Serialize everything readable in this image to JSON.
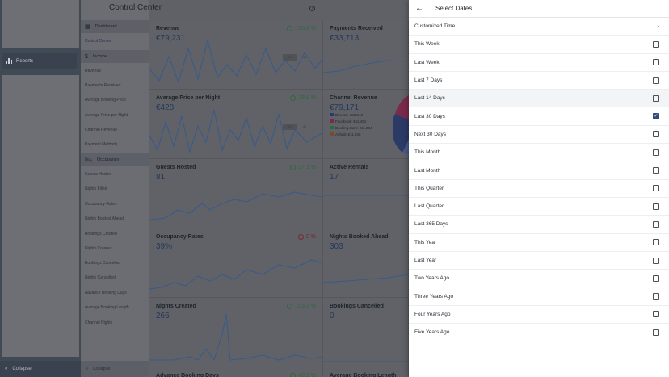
{
  "app_nav": {
    "reports_label": "Reports",
    "collapse_label": "Collapse"
  },
  "sub_nav": {
    "items": [
      {
        "label": "Dashboard",
        "type": "section",
        "icon": "dashboard-icon"
      },
      {
        "label": "Control Center",
        "type": "active"
      },
      {
        "label": "Income",
        "type": "section",
        "icon": "dollar-icon"
      },
      {
        "label": "Revenue"
      },
      {
        "label": "Payments Received"
      },
      {
        "label": "Average Booking Price"
      },
      {
        "label": "Average Price per Night"
      },
      {
        "label": "Channel Revenue"
      },
      {
        "label": "Payment Methods"
      },
      {
        "label": "Occupancy",
        "type": "section",
        "icon": "bed-icon"
      },
      {
        "label": "Guests Hosted"
      },
      {
        "label": "Nights Filled"
      },
      {
        "label": "Occupancy Rates"
      },
      {
        "label": "Nights Booked Ahead"
      },
      {
        "label": "Bookings Created"
      },
      {
        "label": "Nights Created"
      },
      {
        "label": "Bookings Cancelled"
      },
      {
        "label": "Nights Cancelled"
      },
      {
        "label": "Advance Booking Days"
      },
      {
        "label": "Average Booking Length"
      },
      {
        "label": "Channel Nights"
      }
    ],
    "collapse_label": "Collapse"
  },
  "header": {
    "title": "Control Center",
    "info_icon": "info-icon"
  },
  "cards": [
    {
      "label": "Revenue",
      "value": "€79,231",
      "pct": "100.2 %",
      "trend": "up",
      "toggle": [
        "Bill",
        "/N"
      ]
    },
    {
      "label": "Payments Received",
      "value": "€33,713"
    },
    {
      "label": "Average Price per Night",
      "value": "€428",
      "pct": "28.9 %",
      "trend": "up",
      "toggle": [
        "Bill",
        "/N"
      ]
    },
    {
      "label": "Channel Revenue",
      "value": "€79,171"
    },
    {
      "label": "Guests Hosted",
      "value": "81",
      "pct": "37.3 %",
      "trend": "up"
    },
    {
      "label": "Active Rentals",
      "value": "17"
    },
    {
      "label": "Occupancy Rates",
      "value": "39%",
      "pct": "0 %",
      "trend": "down"
    },
    {
      "label": "Nights Booked Ahead",
      "value": "303"
    },
    {
      "label": "Nights Created",
      "value": "266",
      "pct": "103.1 %",
      "trend": "up"
    },
    {
      "label": "Bookings Cancelled",
      "value": "0"
    },
    {
      "label": "Advance Booking Days",
      "value": "",
      "pct": "42.9 %",
      "trend": "up"
    },
    {
      "label": "Average Booking Length",
      "value": ""
    }
  ],
  "channel_legend": [
    {
      "label": "Directs : €20,240",
      "color": "#2c3a66"
    },
    {
      "label": "Facebook: €11,451",
      "color": "#7a2a4a"
    },
    {
      "label": "Booking.Com: €11,284",
      "color": "#2e6a3a"
    },
    {
      "label": "Airbnb: €11,036",
      "color": "#7a4a2a"
    }
  ],
  "drawer": {
    "title": "Select Dates",
    "back_icon": "arrow-left-icon",
    "options": [
      {
        "label": "Customized Time",
        "type": "nav"
      },
      {
        "label": "This Week",
        "checked": false
      },
      {
        "label": "Last Week",
        "checked": false
      },
      {
        "label": "Last 7 Days",
        "checked": false
      },
      {
        "label": "Last 14 Days",
        "checked": false,
        "highlight": true
      },
      {
        "label": "Last 30 Days",
        "checked": true
      },
      {
        "label": "Next 30 Days",
        "checked": false
      },
      {
        "label": "This Month",
        "checked": false
      },
      {
        "label": "Last Month",
        "checked": false
      },
      {
        "label": "This Quarter",
        "checked": false
      },
      {
        "label": "Last Quarter",
        "checked": false
      },
      {
        "label": "Last 365 Days",
        "checked": false
      },
      {
        "label": "This Year",
        "checked": false
      },
      {
        "label": "Last Year",
        "checked": false
      },
      {
        "label": "Two Years Ago",
        "checked": false
      },
      {
        "label": "Three Years Ago",
        "checked": false
      },
      {
        "label": "Four Years Ago",
        "checked": false
      },
      {
        "label": "Five Years Ago",
        "checked": false
      }
    ]
  },
  "colors": {
    "accent": "#2c4a7a",
    "positive": "#2f6a3a",
    "negative": "#7a2a2a"
  }
}
